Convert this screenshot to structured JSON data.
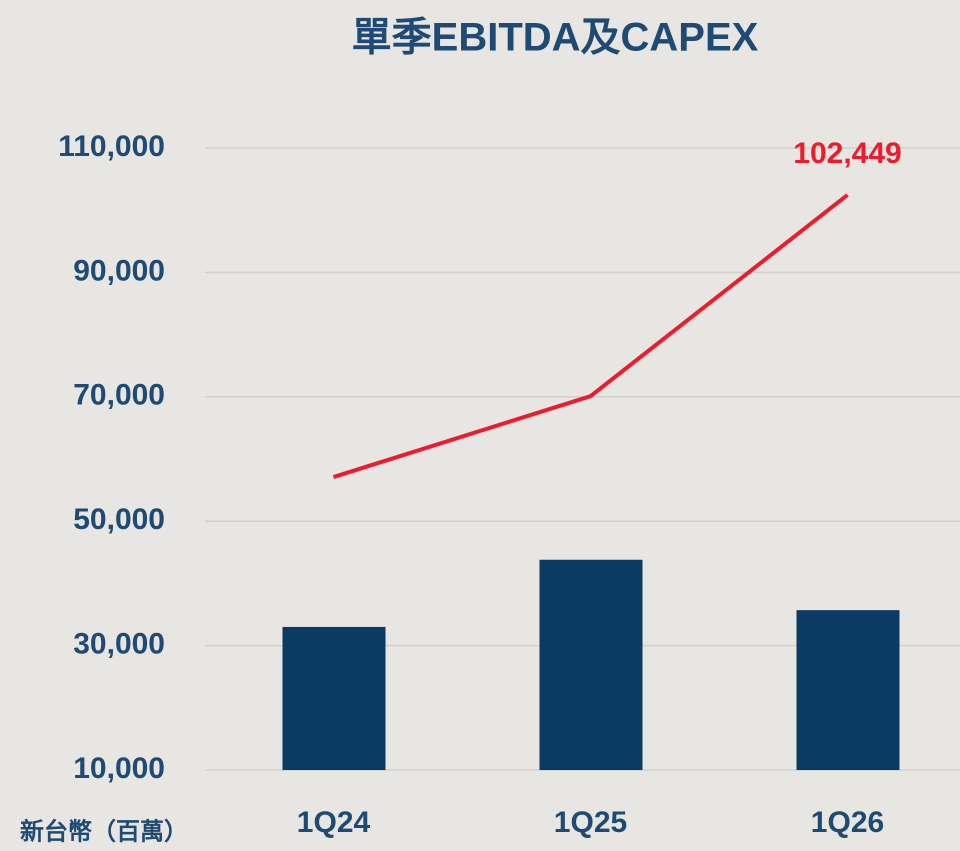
{
  "chart_data": {
    "type": "bar_line",
    "title": "單季EBITDA及CAPEX",
    "y_label": "新台幣（百萬）",
    "categories": [
      "1Q24",
      "1Q25",
      "1Q26"
    ],
    "series": [
      {
        "type": "bar",
        "color": "#0b3a62",
        "values": [
          33000,
          43800,
          35700
        ]
      },
      {
        "type": "line",
        "color": "#ec1c2e",
        "values": [
          57100,
          70100,
          102449
        ],
        "value_labels": [
          null,
          null,
          "102,449"
        ]
      }
    ],
    "ylim": [
      10000,
      110000
    ],
    "yticks": [
      {
        "value": 10000,
        "label": "10,000"
      },
      {
        "value": 30000,
        "label": "30,000"
      },
      {
        "value": 50000,
        "label": "50,000"
      },
      {
        "value": 70000,
        "label": "70,000"
      },
      {
        "value": 90000,
        "label": "90,000"
      },
      {
        "value": 110000,
        "label": "110,000"
      }
    ],
    "grid": true
  }
}
